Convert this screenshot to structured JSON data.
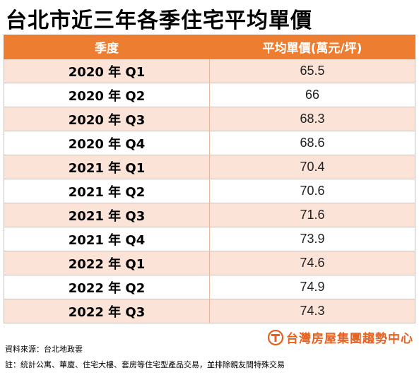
{
  "title": "台北市近三年各季住宅平均單價",
  "chart_data": {
    "type": "table",
    "columns": [
      "季度",
      "平均單價(萬元/坪)"
    ],
    "rows": [
      {
        "quarter": "2020 年 Q1",
        "value": "65.5"
      },
      {
        "quarter": "2020 年 Q2",
        "value": "66"
      },
      {
        "quarter": "2020 年 Q3",
        "value": "68.3"
      },
      {
        "quarter": "2020 年 Q4",
        "value": "68.6"
      },
      {
        "quarter": "2021 年 Q1",
        "value": "70.4"
      },
      {
        "quarter": "2021 年 Q2",
        "value": "70.6"
      },
      {
        "quarter": "2021 年 Q3",
        "value": "71.6"
      },
      {
        "quarter": "2021 年 Q4",
        "value": "73.9"
      },
      {
        "quarter": "2022 年 Q1",
        "value": "74.6"
      },
      {
        "quarter": "2022 年 Q2",
        "value": "74.9"
      },
      {
        "quarter": "2022 年 Q3",
        "value": "74.3"
      }
    ]
  },
  "footer": {
    "source": "資料來源：台北地政雲",
    "note": "註：統計公寓、華廈、住宅大樓、套房等住宅型產品交易，並排除親友間特殊交易",
    "brand": "台灣房屋集團趨勢中心",
    "brand_icon": "taiwan-realty-logo-icon"
  },
  "colors": {
    "header_bg": "#ed7d31",
    "odd_row_bg": "#fbe3d7",
    "even_row_bg": "#ffffff",
    "brand": "#e8601c"
  }
}
